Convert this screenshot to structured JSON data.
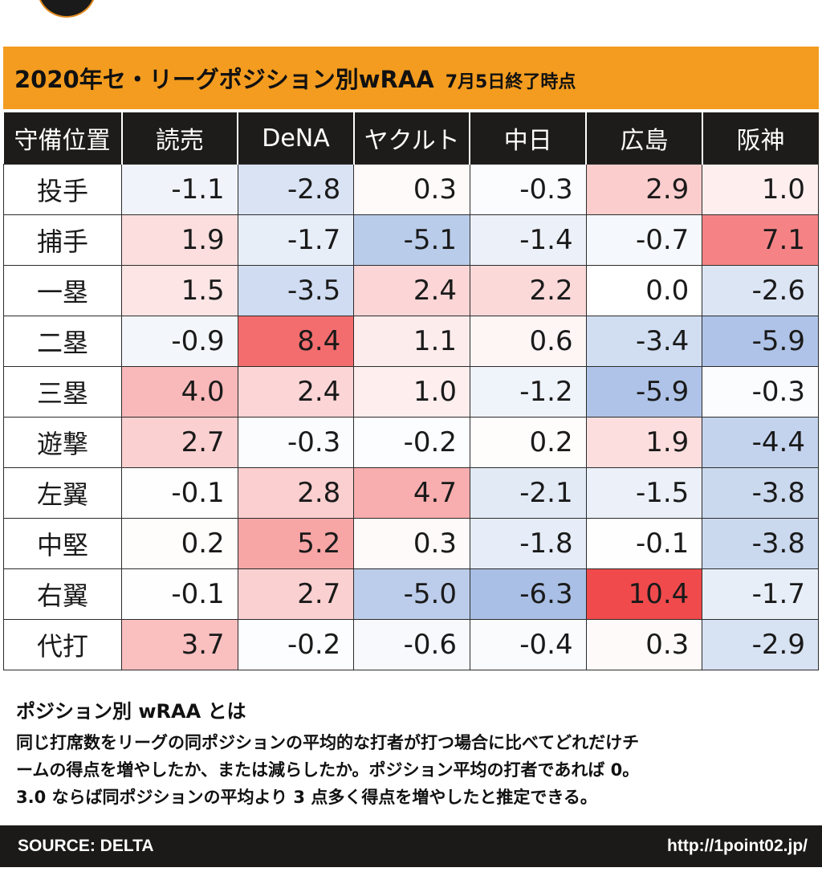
{
  "title": {
    "main": "2020年セ・リーグポジション別wRAA",
    "sub": "7月5日終了時点"
  },
  "chart_data": {
    "type": "table",
    "title": "2020年セ・リーグポジション別wRAA 7月5日終了時点",
    "row_header_label": "守備位置",
    "columns": [
      "読売",
      "DeNA",
      "ヤクルト",
      "中日",
      "広島",
      "阪神"
    ],
    "rows": [
      "投手",
      "捕手",
      "一塁",
      "二塁",
      "三塁",
      "遊撃",
      "左翼",
      "中堅",
      "右翼",
      "代打"
    ],
    "values": [
      [
        "-1.1",
        "-2.8",
        "0.3",
        "-0.3",
        "2.9",
        "1.0"
      ],
      [
        "1.9",
        "-1.7",
        "-5.1",
        "-1.4",
        "-0.7",
        "7.1"
      ],
      [
        "1.5",
        "-3.5",
        "2.4",
        "2.2",
        "0.0",
        "-2.6"
      ],
      [
        "-0.9",
        "8.4",
        "1.1",
        "0.6",
        "-3.4",
        "-5.9"
      ],
      [
        "4.0",
        "2.4",
        "1.0",
        "-1.2",
        "-5.9",
        "-0.3"
      ],
      [
        "2.7",
        "-0.3",
        "-0.2",
        "0.2",
        "1.9",
        "-4.4"
      ],
      [
        "-0.1",
        "2.8",
        "4.7",
        "-2.1",
        "-1.5",
        "-3.8"
      ],
      [
        "0.2",
        "5.2",
        "0.3",
        "-1.8",
        "-0.1",
        "-3.8"
      ],
      [
        "-0.1",
        "2.7",
        "-5.0",
        "-6.3",
        "10.4",
        "-1.7"
      ],
      [
        "3.7",
        "-0.2",
        "-0.6",
        "-0.4",
        "0.3",
        "-2.9"
      ]
    ],
    "color_scale": {
      "negative": "#7196d4",
      "neutral": "#ffffff",
      "positive": "#f04a4c",
      "max_abs": 10.4
    }
  },
  "description": {
    "heading": "ポジション別 wRAA とは",
    "lines": [
      "同じ打席数をリーグの同ポジションの平均的な打者が打つ場合に比べてどれだけチ",
      "ームの得点を増やしたか、または減らしたか。ポジション平均の打者であれば 0。",
      "3.0 ならば同ポジションの平均より 3 点多く得点を増やしたと推定できる。"
    ]
  },
  "footer": {
    "source": "SOURCE: DELTA",
    "url": "http://1point02.jp/"
  },
  "colors": {
    "title_bar": "#f39c1f",
    "header_bg": "#1e1c1b",
    "footer_bg": "#1b1a19"
  }
}
